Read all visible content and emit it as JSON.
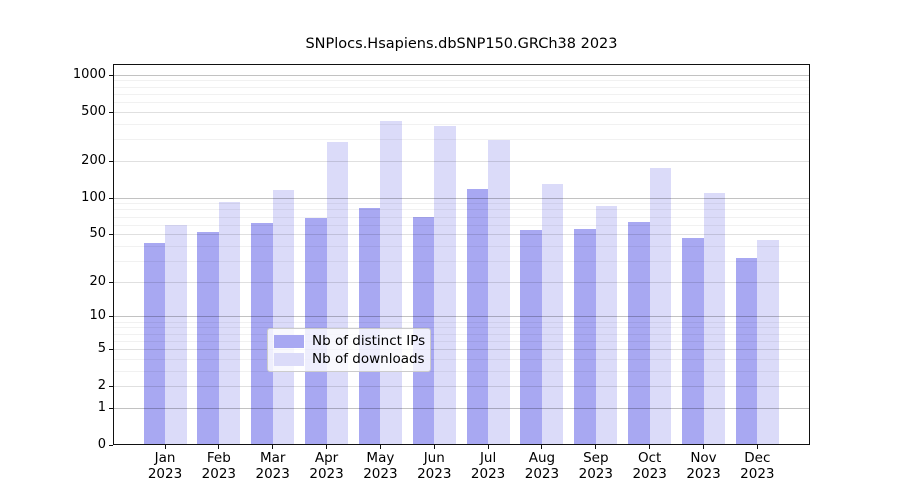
{
  "title": "SNPlocs.Hsapiens.dbSNP150.GRCh38 2023",
  "chart_data": {
    "type": "bar",
    "title": "SNPlocs.Hsapiens.dbSNP150.GRCh38 2023",
    "x_categories": [
      "Jan",
      "Feb",
      "Mar",
      "Apr",
      "May",
      "Jun",
      "Jul",
      "Aug",
      "Sep",
      "Oct",
      "Nov",
      "Dec"
    ],
    "x_year_label": "2023",
    "series": [
      {
        "name": "Nb of distinct IPs",
        "color": "#a8a8f2",
        "values": [
          42,
          52,
          62,
          68,
          83,
          70,
          118,
          54,
          55,
          63,
          47,
          32
        ]
      },
      {
        "name": "Nb of downloads",
        "color": "#dbdbf9",
        "values": [
          60,
          93,
          115,
          285,
          420,
          385,
          295,
          129,
          86,
          175,
          109,
          45
        ]
      }
    ],
    "y_scale": "log10(1+x)",
    "y_ticks": [
      0,
      1,
      2,
      5,
      10,
      20,
      50,
      100,
      200,
      500,
      1000
    ],
    "y_lim": [
      0,
      1200
    ],
    "grid": true,
    "legend_position": "bottom-center",
    "colors": {
      "bar_dark": "#a8a8f2",
      "bar_light": "#dbdbf9",
      "axis": "#111111",
      "grid_decade": "rgba(0,0,0,0.24)",
      "grid_labeled": "rgba(0,0,0,0.12)",
      "grid_minor": "rgba(0,0,0,0.055)"
    }
  }
}
